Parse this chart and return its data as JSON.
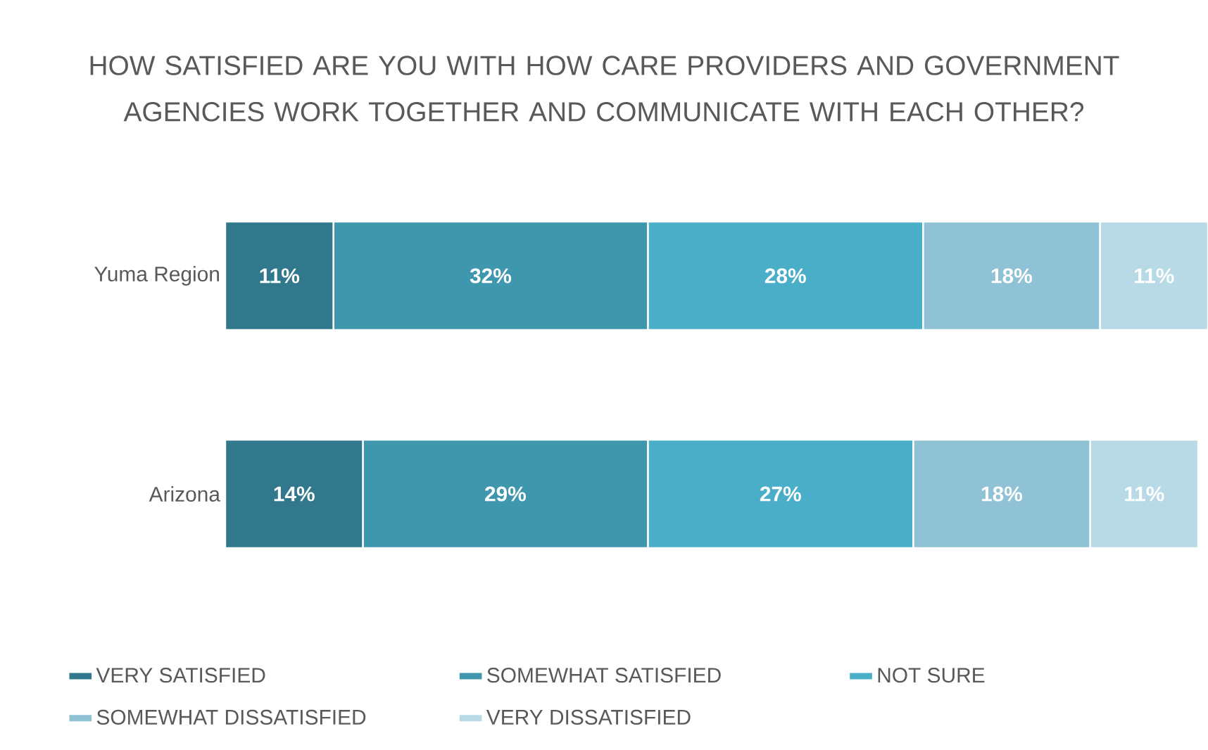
{
  "chart_data": {
    "type": "bar",
    "orientation": "horizontal",
    "stacked": true,
    "legend": "bottom",
    "title": "HOW SATISFIED ARE YOU WITH HOW CARE PROVIDERS AND GOVERNMENT AGENCIES WORK TOGETHER AND COMMUNICATE WITH EACH OTHER?",
    "categories": [
      "Yuma Region",
      "Arizona"
    ],
    "series": [
      {
        "name": "VERY SATISFIED",
        "color": "#31788d",
        "values": [
          11,
          14
        ],
        "value_labels": [
          "11%",
          "14%"
        ]
      },
      {
        "name": "SOMEWHAT SATISFIED",
        "color": "#3f97ae",
        "values": [
          32,
          29
        ],
        "value_labels": [
          "32%",
          "29%"
        ]
      },
      {
        "name": "NOT SURE",
        "color": "#4aaec8",
        "values": [
          28,
          27
        ],
        "value_labels": [
          "28%",
          "27%"
        ]
      },
      {
        "name": "SOMEWHAT DISSATISFIED",
        "color": "#8fc2d4",
        "values": [
          18,
          18
        ],
        "value_labels": [
          "18%",
          "18%"
        ]
      },
      {
        "name": "VERY DISSATISFIED",
        "color": "#b8dae6",
        "values": [
          11,
          11
        ],
        "value_labels": [
          "11%",
          "11%"
        ]
      }
    ]
  }
}
